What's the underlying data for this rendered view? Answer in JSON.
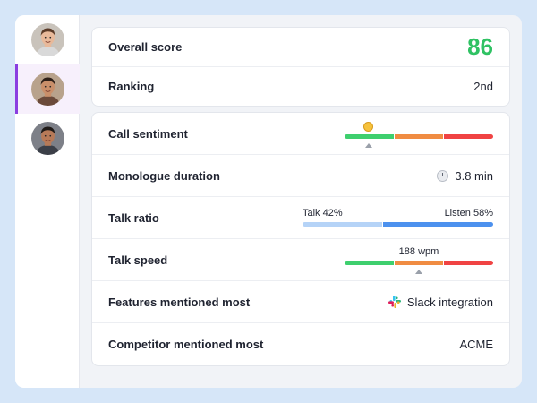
{
  "sidebar": {
    "people": [
      {
        "name": "avatar-1",
        "skin": "#e8b99a",
        "hair": "#5a3a27",
        "shirt": "#d9d9d9",
        "bg": "#c9c3bb"
      },
      {
        "name": "avatar-2",
        "skin": "#c98f6a",
        "hair": "#2d1f18",
        "shirt": "#6b4a3a",
        "bg": "#b8a28c"
      },
      {
        "name": "avatar-3",
        "skin": "#b77a58",
        "hair": "#1f1a17",
        "shirt": "#3b3f48",
        "bg": "#7d8088"
      }
    ],
    "active_index": 1
  },
  "summary": {
    "overall_score_label": "Overall score",
    "overall_score_value": "86",
    "ranking_label": "Ranking",
    "ranking_value": "2nd"
  },
  "metrics": {
    "call_sentiment": {
      "label": "Call sentiment",
      "emoji_icon": "smiling-face-icon",
      "position_fraction": 0.16
    },
    "monologue": {
      "label": "Monologue duration",
      "icon": "clock-icon",
      "value": "3.8 min"
    },
    "talk_ratio": {
      "label": "Talk ratio",
      "talk_label": "Talk 42%",
      "listen_label": "Listen 58%",
      "talk_percent": 42,
      "listen_percent": 58
    },
    "talk_speed": {
      "label": "Talk speed",
      "value": "188 wpm",
      "position_fraction": 0.5
    },
    "features": {
      "label": "Features mentioned most",
      "icon": "slack-icon",
      "value": "Slack integration"
    },
    "competitor": {
      "label": "Competitor mentioned most",
      "value": "ACME"
    }
  },
  "colors": {
    "score_green": "#2fc263",
    "accent_purple": "#8b3ee0",
    "meter_green": "#3ecf6e",
    "meter_orange": "#f08c42",
    "meter_red": "#f04343",
    "talk_light_blue": "#b5d3f7",
    "listen_blue": "#4c91ee"
  }
}
